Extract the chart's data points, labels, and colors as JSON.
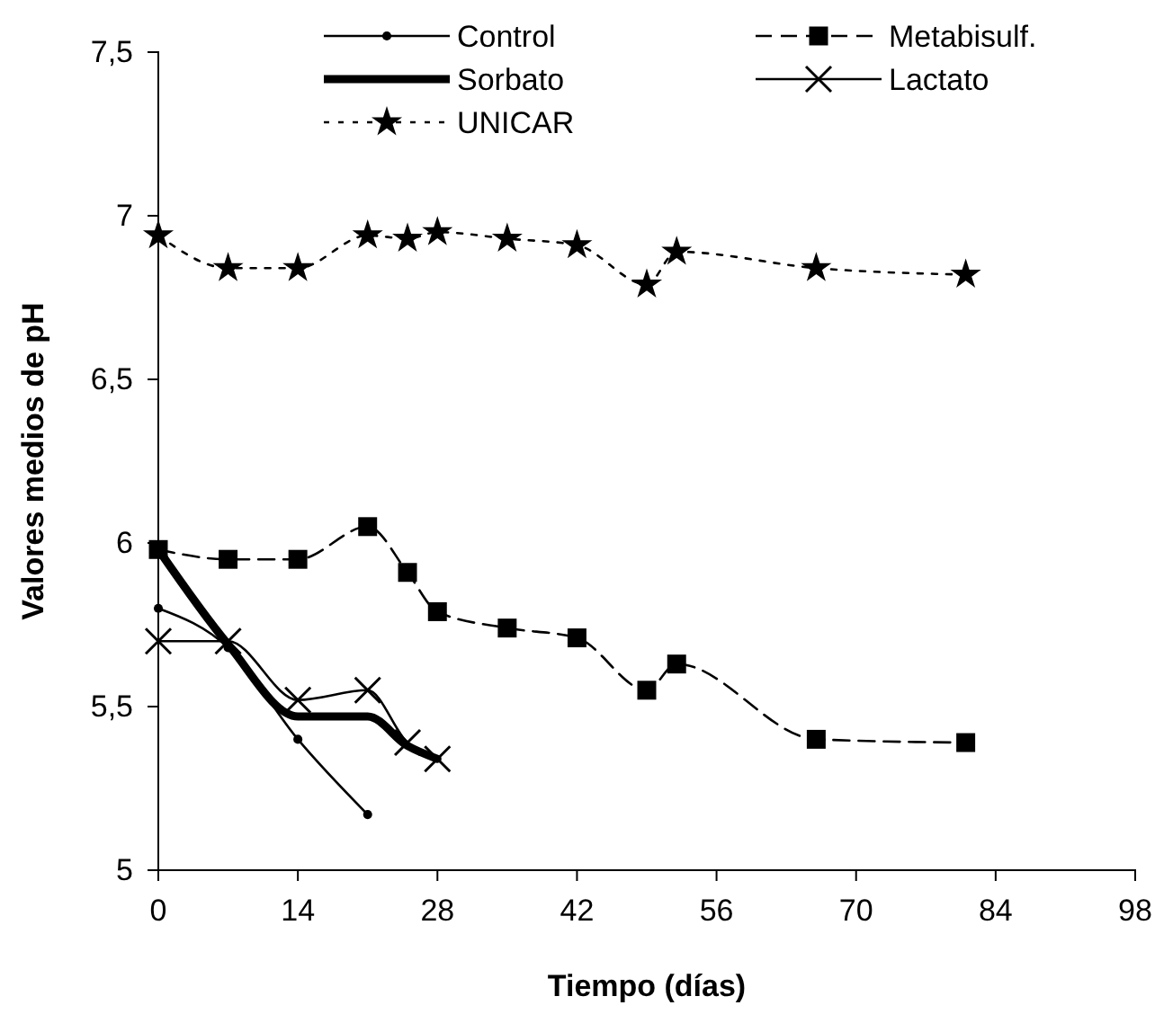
{
  "chart_data": {
    "type": "line",
    "xlabel": "Tiempo (días)",
    "ylabel": "Valores medios de pH",
    "xlim": [
      0,
      98
    ],
    "xticks": [
      0,
      14,
      28,
      42,
      56,
      70,
      84,
      98
    ],
    "ylim": [
      5,
      7.5
    ],
    "yticks": [
      5,
      {
        "value": 5.5,
        "label": "5,5"
      },
      6,
      {
        "value": 6.5,
        "label": "6,5"
      },
      7,
      {
        "value": 7.5,
        "label": "7,5"
      }
    ],
    "grid": false,
    "legend": "top",
    "series": [
      {
        "name": "Control",
        "color": "#000000",
        "marker": "circle",
        "line_style": "solid",
        "x": [
          0,
          7,
          14,
          21
        ],
        "values": [
          5.8,
          5.68,
          5.4,
          5.17
        ]
      },
      {
        "name": "Metabisulf.",
        "color": "#000000",
        "marker": "square",
        "line_style": "dashed",
        "x": [
          0,
          7,
          14,
          21,
          25,
          28,
          35,
          42,
          49,
          52,
          66,
          81
        ],
        "values": [
          5.98,
          5.95,
          5.95,
          6.05,
          5.91,
          5.79,
          5.74,
          5.71,
          5.55,
          5.63,
          5.4,
          5.39
        ]
      },
      {
        "name": "Sorbato",
        "color": "#000000",
        "marker": "none",
        "line_style": "solid",
        "x": [
          0,
          7,
          14,
          21,
          25,
          28
        ],
        "values": [
          5.98,
          5.69,
          5.47,
          5.47,
          5.38,
          5.34
        ]
      },
      {
        "name": "Lactato",
        "color": "#000000",
        "marker": "cross",
        "line_style": "solid",
        "x": [
          0,
          7,
          14,
          21,
          25,
          28
        ],
        "values": [
          5.7,
          5.7,
          5.52,
          5.55,
          5.39,
          5.34
        ]
      },
      {
        "name": "UNICAR",
        "color": "#000000",
        "marker": "star",
        "line_style": "dotted",
        "x": [
          0,
          7,
          14,
          21,
          25,
          28,
          35,
          42,
          49,
          52,
          66,
          81
        ],
        "values": [
          6.94,
          6.84,
          6.84,
          6.94,
          6.93,
          6.95,
          6.93,
          6.91,
          6.79,
          6.89,
          6.84,
          6.82
        ]
      }
    ]
  }
}
